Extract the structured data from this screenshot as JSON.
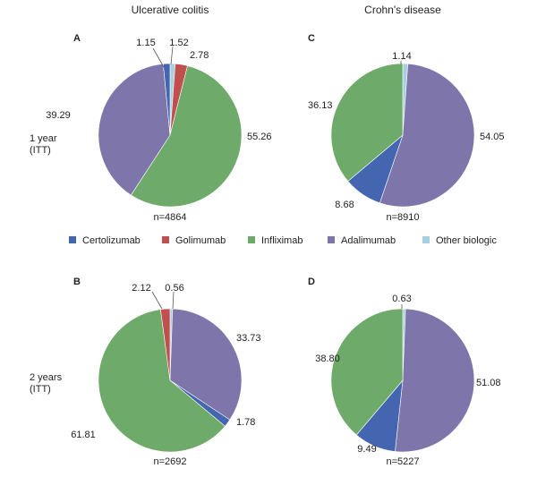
{
  "columns": [
    "Ulcerative colitis",
    "Crohn's disease"
  ],
  "rows": [
    {
      "line1": "1 year",
      "line2": "(ITT)"
    },
    {
      "line1": "2 years",
      "line2": "(ITT)"
    }
  ],
  "colors": {
    "Certolizumab": "#4466b0",
    "Golimumab": "#c0504d",
    "Infliximab": "#6eaa6a",
    "Adalimumab": "#7e75aa",
    "Other biologic": "#a6cfe0"
  },
  "chart_data": [
    {
      "type": "pie",
      "panel": "A",
      "n": "n=4864",
      "slices": [
        {
          "name": "Other biologic",
          "value": 1.15,
          "label": "1.15"
        },
        {
          "name": "Golimumab",
          "value": 2.78,
          "label": "2.78"
        },
        {
          "name": "Infliximab",
          "value": 55.26,
          "label": "55.26"
        },
        {
          "name": "Adalimumab",
          "value": 39.29,
          "label": "39.29"
        },
        {
          "name": "Certolizumab",
          "value": 1.52,
          "label": "1.52"
        }
      ]
    },
    {
      "type": "pie",
      "panel": "C",
      "n": "n=8910",
      "slices": [
        {
          "name": "Other biologic",
          "value": 1.14,
          "label": "1.14"
        },
        {
          "name": "Adalimumab",
          "value": 54.05,
          "label": "54.05"
        },
        {
          "name": "Certolizumab",
          "value": 8.68,
          "label": "8.68"
        },
        {
          "name": "Infliximab",
          "value": 36.13,
          "label": "36.13"
        }
      ]
    },
    {
      "type": "pie",
      "panel": "B",
      "n": "n=2692",
      "slices": [
        {
          "name": "Other biologic",
          "value": 0.56,
          "label": "0.56"
        },
        {
          "name": "Adalimumab",
          "value": 33.73,
          "label": "33.73"
        },
        {
          "name": "Certolizumab",
          "value": 1.78,
          "label": "1.78"
        },
        {
          "name": "Infliximab",
          "value": 61.81,
          "label": "61.81"
        },
        {
          "name": "Golimumab",
          "value": 2.12,
          "label": "2.12"
        }
      ]
    },
    {
      "type": "pie",
      "panel": "D",
      "n": "n=5227",
      "slices": [
        {
          "name": "Other biologic",
          "value": 0.63,
          "label": "0.63"
        },
        {
          "name": "Adalimumab",
          "value": 51.08,
          "label": "51.08"
        },
        {
          "name": "Certolizumab",
          "value": 9.49,
          "label": "9.49"
        },
        {
          "name": "Infliximab",
          "value": 38.8,
          "label": "38.80"
        }
      ]
    }
  ],
  "legend": [
    "Certolizumab",
    "Golimumab",
    "Infliximab",
    "Adalimumab",
    "Other biologic"
  ]
}
